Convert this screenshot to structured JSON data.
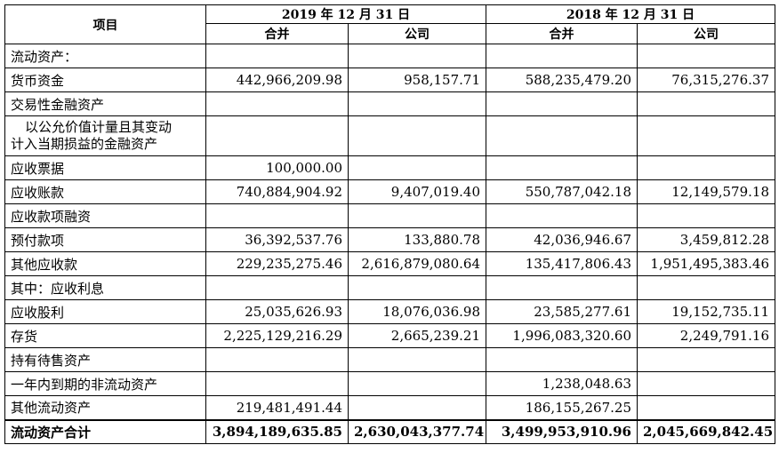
{
  "header": {
    "item": "项目",
    "period_2019": "2019 年 12 月 31 日",
    "period_2018": "2018 年 12 月 31 日",
    "consolidated": "合并",
    "company": "公司"
  },
  "rows": [
    {
      "label": "流动资产：",
      "c19": "",
      "p19": "",
      "c18": "",
      "p18": ""
    },
    {
      "label": "货币资金",
      "c19": "442,966,209.98",
      "p19": "958,157.71",
      "c18": "588,235,479.20",
      "p18": "76,315,276.37"
    },
    {
      "label": "交易性金融资产",
      "c19": "",
      "p19": "",
      "c18": "",
      "p18": ""
    },
    {
      "label_l1": "以公允价值计量且其变动",
      "label_l2": "计入当期损益的金融资产",
      "c19": "",
      "p19": "",
      "c18": "",
      "p18": ""
    },
    {
      "label": "应收票据",
      "c19": "100,000.00",
      "p19": "",
      "c18": "",
      "p18": ""
    },
    {
      "label": "应收账款",
      "c19": "740,884,904.92",
      "p19": "9,407,019.40",
      "c18": "550,787,042.18",
      "p18": "12,149,579.18"
    },
    {
      "label": "应收款项融资",
      "c19": "",
      "p19": "",
      "c18": "",
      "p18": ""
    },
    {
      "label": "预付款项",
      "c19": "36,392,537.76",
      "p19": "133,880.78",
      "c18": "42,036,946.67",
      "p18": "3,459,812.28"
    },
    {
      "label": "其他应收款",
      "c19": "229,235,275.46",
      "p19": "2,616,879,080.64",
      "c18": "135,417,806.43",
      "p18": "1,951,495,383.46"
    },
    {
      "label": "其中：应收利息",
      "c19": "",
      "p19": "",
      "c18": "",
      "p18": ""
    },
    {
      "label": "应收股利",
      "c19": "25,035,626.93",
      "p19": "18,076,036.98",
      "c18": "23,585,277.61",
      "p18": "19,152,735.11"
    },
    {
      "label": "存货",
      "c19": "2,225,129,216.29",
      "p19": "2,665,239.21",
      "c18": "1,996,083,320.60",
      "p18": "2,249,791.16"
    },
    {
      "label": "持有待售资产",
      "c19": "",
      "p19": "",
      "c18": "",
      "p18": ""
    },
    {
      "label": "一年内到期的非流动资产",
      "c19": "",
      "p19": "",
      "c18": "1,238,048.63",
      "p18": ""
    },
    {
      "label": "其他流动资产",
      "c19": "219,481,491.44",
      "p19": "",
      "c18": "186,155,267.25",
      "p18": ""
    },
    {
      "label": "流动资产合计",
      "c19": "3,894,189,635.85",
      "p19": "2,630,043,377.74",
      "c18": "3,499,953,910.96",
      "p18": "2,045,669,842.45"
    }
  ]
}
